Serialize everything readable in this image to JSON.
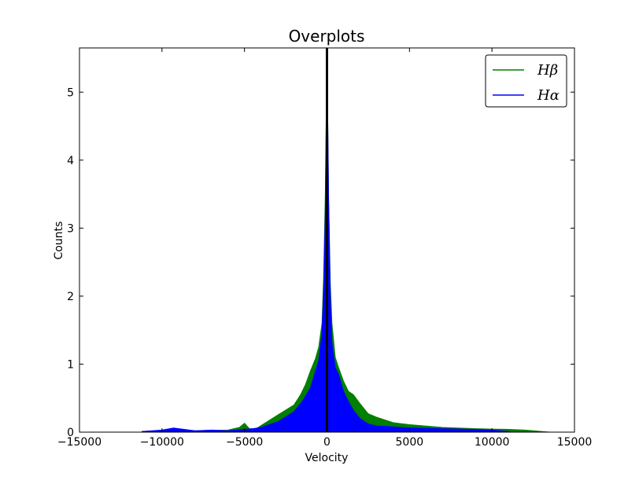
{
  "chart_data": {
    "type": "area",
    "title": "Overplots",
    "xlabel": "Velocity",
    "ylabel": "Counts",
    "xlim": [
      -15000,
      15000
    ],
    "ylim": [
      0,
      5.65
    ],
    "xticks": [
      -15000,
      -10000,
      -5000,
      0,
      5000,
      10000,
      15000
    ],
    "xtick_labels": [
      "−15000",
      "−10000",
      "−5000",
      "0",
      "5000",
      "10000",
      "15000"
    ],
    "yticks": [
      0,
      1,
      2,
      3,
      4,
      5
    ],
    "ytick_labels": [
      "0",
      "1",
      "2",
      "3",
      "4",
      "5"
    ],
    "grid": false,
    "legend_position": "top-right",
    "vertical_line_x": 0,
    "series": [
      {
        "name": "Hβ",
        "color": "#007f00",
        "x": [
          -11200,
          -10000,
          -9300,
          -8000,
          -6000,
          -5300,
          -5000,
          -4700,
          -4300,
          -3000,
          -2000,
          -1600,
          -1300,
          -1000,
          -700,
          -500,
          -300,
          -200,
          -100,
          0,
          100,
          200,
          300,
          500,
          700,
          1000,
          1300,
          1600,
          2000,
          2500,
          3000,
          4000,
          5000,
          7000,
          9000,
          11000,
          12000,
          13500
        ],
        "values": [
          0.01,
          0.01,
          0.04,
          0.02,
          0.03,
          0.07,
          0.13,
          0.05,
          0.05,
          0.25,
          0.4,
          0.55,
          0.7,
          0.9,
          1.08,
          1.25,
          1.6,
          2.3,
          3.5,
          5.6,
          3.4,
          2.2,
          1.6,
          1.1,
          0.95,
          0.75,
          0.6,
          0.55,
          0.42,
          0.27,
          0.22,
          0.14,
          0.11,
          0.07,
          0.05,
          0.04,
          0.03,
          0.0
        ]
      },
      {
        "name": "Hα",
        "color": "#0000ff",
        "x": [
          -11200,
          -10000,
          -9300,
          -8000,
          -7000,
          -6000,
          -5000,
          -4500,
          -4000,
          -3000,
          -2000,
          -1500,
          -1000,
          -700,
          -500,
          -300,
          -200,
          -100,
          0,
          100,
          200,
          300,
          500,
          700,
          1000,
          1300,
          1600,
          2000,
          2500,
          3000,
          4000,
          5000,
          7000,
          9000,
          10000,
          11000
        ],
        "values": [
          0.01,
          0.03,
          0.06,
          0.02,
          0.03,
          0.02,
          0.04,
          0.05,
          0.07,
          0.15,
          0.3,
          0.45,
          0.65,
          0.9,
          1.05,
          1.45,
          2.1,
          3.2,
          5.6,
          3.4,
          2.0,
          1.3,
          0.95,
          0.85,
          0.6,
          0.45,
          0.32,
          0.2,
          0.12,
          0.09,
          0.08,
          0.06,
          0.05,
          0.04,
          0.03,
          0.01
        ]
      }
    ]
  }
}
